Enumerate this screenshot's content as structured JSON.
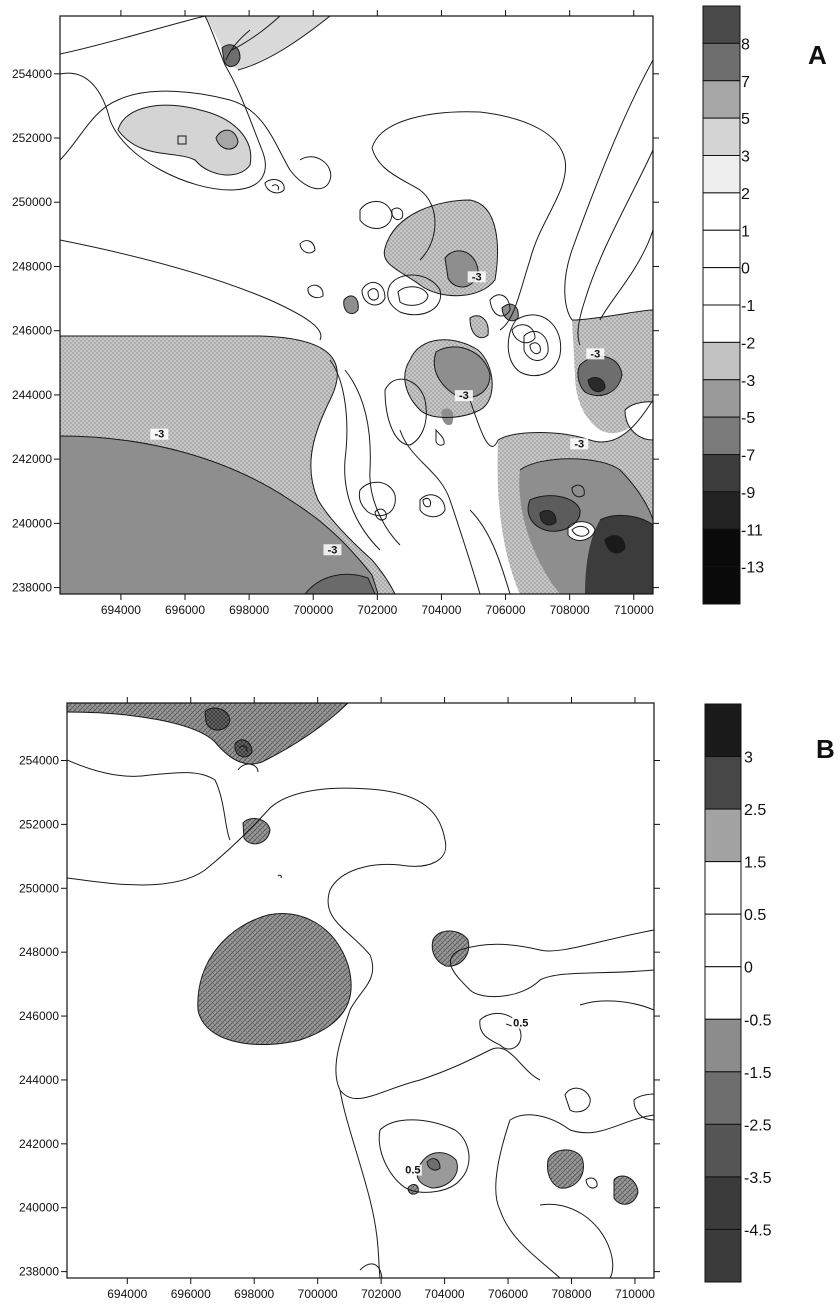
{
  "chart_data": [
    {
      "type": "heatmap",
      "panel_label": "A",
      "xlim": [
        692100,
        710600
      ],
      "ylim": [
        237800,
        255800
      ],
      "x_ticks": [
        694000,
        696000,
        698000,
        700000,
        702000,
        704000,
        706000,
        708000,
        710000
      ],
      "x_tick_labels": [
        "694000",
        "696000",
        "698000",
        "700000",
        "702000",
        "704000",
        "706000",
        "708000",
        "710000"
      ],
      "y_ticks": [
        238000,
        240000,
        242000,
        244000,
        246000,
        248000,
        250000,
        252000,
        254000
      ],
      "y_tick_labels": [
        "238000",
        "240000",
        "242000",
        "244000",
        "246000",
        "248000",
        "250000",
        "252000",
        "254000"
      ],
      "legend_levels": [
        "8",
        "7",
        "5",
        "3",
        "2",
        "1",
        "0",
        "-1",
        "-2",
        "-3",
        "-5",
        "-7",
        "-9",
        "-11",
        "-13"
      ],
      "legend_colors": [
        "#4a4a4a",
        "#6e6e6e",
        "#a6a6a6",
        "#d4d4d4",
        "#eeeeee",
        "#ffffff",
        "#ffffff",
        "#ffffff",
        "#ffffff",
        "#c2c2c2",
        "#9a9a9a",
        "#7a7a7a",
        "#3c3c3c",
        "#222222",
        "#0a0a0a"
      ],
      "contour_labels": [
        {
          "text": "-3",
          "x": 695200,
          "y": 242700
        },
        {
          "text": "-3",
          "x": 700600,
          "y": 239100
        },
        {
          "text": "-3",
          "x": 704700,
          "y": 243900
        },
        {
          "text": "-3",
          "x": 705100,
          "y": 247600
        },
        {
          "text": "-3",
          "x": 708800,
          "y": 245200
        },
        {
          "text": "-3",
          "x": 708300,
          "y": 242400
        }
      ]
    },
    {
      "type": "heatmap",
      "panel_label": "B",
      "xlim": [
        692100,
        710600
      ],
      "ylim": [
        237800,
        255800
      ],
      "x_ticks": [
        694000,
        696000,
        698000,
        700000,
        702000,
        704000,
        706000,
        708000,
        710000
      ],
      "x_tick_labels": [
        "694000",
        "696000",
        "698000",
        "700000",
        "702000",
        "704000",
        "706000",
        "708000",
        "710000"
      ],
      "y_ticks": [
        238000,
        240000,
        242000,
        244000,
        246000,
        248000,
        250000,
        252000,
        254000
      ],
      "y_tick_labels": [
        "238000",
        "240000",
        "242000",
        "244000",
        "246000",
        "248000",
        "250000",
        "252000",
        "254000"
      ],
      "legend_levels": [
        "3",
        "2.5",
        "1.5",
        "0.5",
        "0",
        "-0.5",
        "-1.5",
        "-2.5",
        "-3.5",
        "-4.5"
      ],
      "legend_colors": [
        "#1a1a1a",
        "#474747",
        "#a3a3a3",
        "#ffffff",
        "#ffffff",
        "#ffffff",
        "#8c8c8c",
        "#6e6e6e",
        "#555555",
        "#3b3b3b"
      ],
      "contour_labels": [
        {
          "text": "0.5",
          "x": 706400,
          "y": 245700
        },
        {
          "text": "0.5",
          "x": 703000,
          "y": 241100
        }
      ]
    }
  ]
}
